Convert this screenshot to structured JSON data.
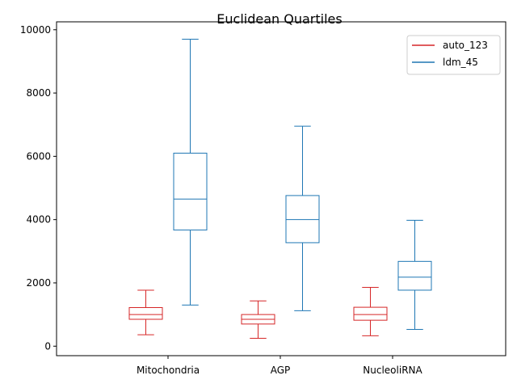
{
  "chart_data": {
    "type": "box",
    "title": "Euclidean Quartiles",
    "xlabel": "",
    "ylabel": "",
    "categories": [
      "Mitochondria",
      "AGP",
      "NucleoliRNA"
    ],
    "ylim": [
      -300,
      10250
    ],
    "yticks": [
      0,
      2000,
      4000,
      6000,
      8000,
      10000
    ],
    "grid": false,
    "legend_position": "top-right",
    "series": [
      {
        "name": "auto_123",
        "color": "#d62728",
        "boxes": [
          {
            "category": "Mitochondria",
            "whisker_low": 360,
            "q1": 850,
            "median": 1000,
            "q3": 1220,
            "whisker_high": 1770
          },
          {
            "category": "AGP",
            "whisker_low": 250,
            "q1": 700,
            "median": 850,
            "q3": 1000,
            "whisker_high": 1430
          },
          {
            "category": "NucleoliRNA",
            "whisker_low": 330,
            "q1": 820,
            "median": 1000,
            "q3": 1230,
            "whisker_high": 1860
          }
        ]
      },
      {
        "name": "ldm_45",
        "color": "#1f77b4",
        "boxes": [
          {
            "category": "Mitochondria",
            "whisker_low": 1300,
            "q1": 3670,
            "median": 4650,
            "q3": 6100,
            "whisker_high": 9700
          },
          {
            "category": "AGP",
            "whisker_low": 1120,
            "q1": 3270,
            "median": 4000,
            "q3": 4760,
            "whisker_high": 6950
          },
          {
            "category": "NucleoliRNA",
            "whisker_low": 530,
            "q1": 1770,
            "median": 2180,
            "q3": 2680,
            "whisker_high": 3980
          }
        ]
      }
    ]
  }
}
